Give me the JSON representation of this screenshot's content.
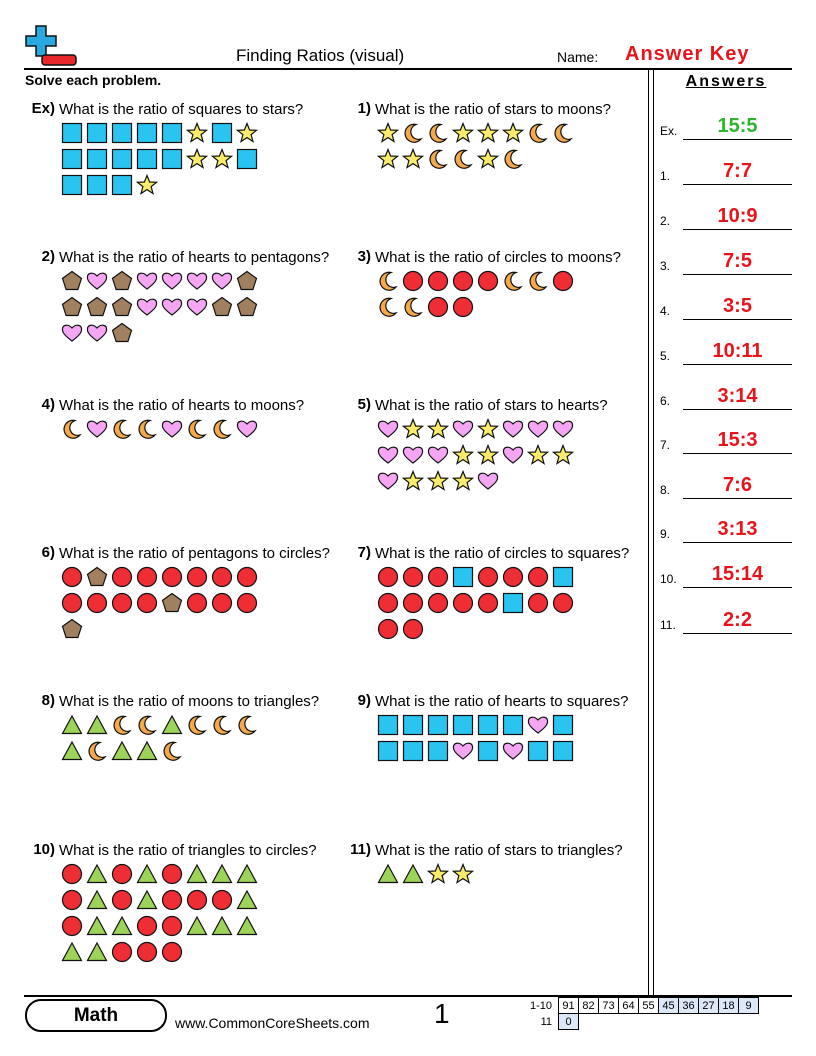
{
  "header": {
    "title": "Finding Ratios (visual)",
    "name_label": "Name:",
    "answer_key": "Answer Key"
  },
  "instructions": "Solve each problem.",
  "answers_heading": "Answers",
  "problems": [
    {
      "label": "Ex)",
      "question": "What is the ratio of squares to stars?"
    },
    {
      "label": "1)",
      "question": "What is the ratio of stars to moons?"
    },
    {
      "label": "2)",
      "question": "What is the ratio of hearts to pentagons?"
    },
    {
      "label": "3)",
      "question": "What is the ratio of circles to moons?"
    },
    {
      "label": "4)",
      "question": "What is the ratio of hearts to moons?"
    },
    {
      "label": "5)",
      "question": "What is the ratio of stars to hearts?"
    },
    {
      "label": "6)",
      "question": "What is the ratio of pentagons to circles?"
    },
    {
      "label": "7)",
      "question": "What is the ratio of circles to squares?"
    },
    {
      "label": "8)",
      "question": "What is the ratio of moons to triangles?"
    },
    {
      "label": "9)",
      "question": "What is the ratio of hearts to squares?"
    },
    {
      "label": "10)",
      "question": "What is the ratio of triangles to circles?"
    },
    {
      "label": "11)",
      "question": "What is the ratio of stars to triangles?"
    }
  ],
  "answers": [
    {
      "label": "Ex.",
      "value": "15:5"
    },
    {
      "label": "1.",
      "value": "7:7"
    },
    {
      "label": "2.",
      "value": "10:9"
    },
    {
      "label": "3.",
      "value": "7:5"
    },
    {
      "label": "4.",
      "value": "3:5"
    },
    {
      "label": "5.",
      "value": "10:11"
    },
    {
      "label": "6.",
      "value": "3:14"
    },
    {
      "label": "7.",
      "value": "15:3"
    },
    {
      "label": "8.",
      "value": "7:6"
    },
    {
      "label": "9.",
      "value": "3:13"
    },
    {
      "label": "10.",
      "value": "15:14"
    },
    {
      "label": "11.",
      "value": "2:2"
    }
  ],
  "footer": {
    "brand": "Math",
    "website": "www.CommonCoreSheets.com",
    "page": 1,
    "score_rows": [
      {
        "label": "1-10",
        "scores": [
          91,
          82,
          73,
          64,
          55,
          45,
          36,
          27,
          18,
          9
        ]
      },
      {
        "label": "11",
        "scores": [
          0
        ]
      }
    ]
  }
}
